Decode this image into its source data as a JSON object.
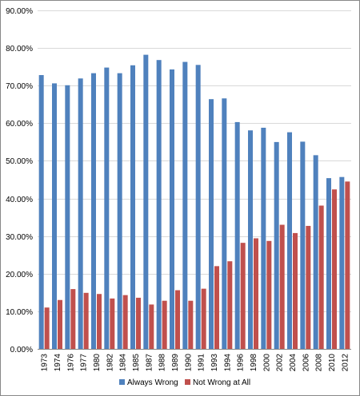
{
  "chart_data": {
    "type": "bar",
    "title": "",
    "xlabel": "",
    "ylabel": "",
    "ylim": [
      0,
      90
    ],
    "y_tick_step": 10,
    "y_tick_format": "percent_2dp",
    "grid": true,
    "legend_position": "bottom",
    "categories": [
      "1973",
      "1974",
      "1976",
      "1977",
      "1980",
      "1982",
      "1984",
      "1985",
      "1987",
      "1988",
      "1989",
      "1990",
      "1991",
      "1993",
      "1994",
      "1996",
      "1998",
      "2000",
      "2002",
      "2004",
      "2006",
      "2008",
      "2010",
      "2012"
    ],
    "series": [
      {
        "name": "Always Wrong",
        "color": "#4f81bd",
        "values": [
          72.8,
          70.6,
          70.1,
          71.9,
          73.3,
          74.8,
          73.3,
          75.4,
          78.2,
          76.8,
          74.3,
          76.3,
          75.5,
          66.4,
          66.6,
          60.3,
          58.1,
          58.8,
          55.0,
          57.6,
          55.1,
          51.5,
          45.4,
          45.7
        ]
      },
      {
        "name": "Not Wrong at All",
        "color": "#c0504d",
        "values": [
          11.0,
          13.0,
          15.9,
          14.9,
          14.6,
          13.4,
          14.3,
          13.6,
          11.8,
          12.8,
          15.6,
          12.8,
          16.0,
          22.0,
          23.3,
          28.2,
          29.4,
          28.7,
          33.0,
          30.8,
          32.7,
          38.1,
          42.4,
          44.5
        ]
      }
    ]
  }
}
